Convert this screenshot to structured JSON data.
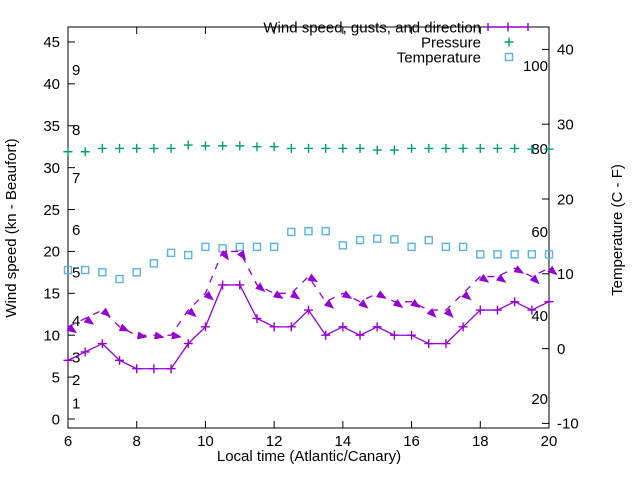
{
  "colors": {
    "wind": "#9400d3",
    "pressure": "#009e73",
    "temperature": "#56b4e9",
    "text": "#000000",
    "border": "#000000"
  },
  "legend": {
    "items": [
      {
        "label": "Wind speed, gusts, and direction"
      },
      {
        "label": "Pressure"
      },
      {
        "label": "Temperature"
      }
    ]
  },
  "axes": {
    "x": {
      "title": "Local time (Atlantic/Canary)",
      "range": [
        6,
        20
      ],
      "ticks": [
        6,
        8,
        10,
        12,
        14,
        16,
        18,
        20
      ]
    },
    "left": {
      "title": "Wind speed (kn - Beaufort)",
      "ticks": [
        0,
        5,
        10,
        15,
        20,
        25,
        30,
        35,
        40,
        45
      ]
    },
    "right": {
      "title": "Temperature (C - F)",
      "ticks": [
        -10,
        0,
        10,
        20,
        30,
        40
      ]
    },
    "beaufort_labels": [
      {
        "text": "1",
        "kn": 1.9
      },
      {
        "text": "2",
        "kn": 4.7
      },
      {
        "text": "3",
        "kn": 7.4
      },
      {
        "text": "4",
        "kn": 11.7
      },
      {
        "text": "5",
        "kn": 17.5
      },
      {
        "text": "6",
        "kn": 22.6
      },
      {
        "text": "7",
        "kn": 28.8
      },
      {
        "text": "8",
        "kn": 34.5
      },
      {
        "text": "9",
        "kn": 41.7
      }
    ],
    "fahrenheit_labels": [
      {
        "text": "20",
        "c": -6.7
      },
      {
        "text": "40",
        "c": 4.4
      },
      {
        "text": "60",
        "c": 15.6
      },
      {
        "text": "80",
        "c": 26.7
      },
      {
        "text": "100",
        "c": 37.8
      }
    ]
  },
  "chart_data": {
    "type": "line",
    "x_hours": [
      6,
      6.5,
      7,
      7.5,
      8,
      8.5,
      9,
      9.5,
      10,
      10.5,
      11,
      11.5,
      12,
      12.5,
      13,
      13.5,
      14,
      14.5,
      15,
      15.5,
      16,
      16.5,
      17,
      17.5,
      18,
      18.5,
      19,
      19.5,
      20
    ],
    "series": [
      {
        "name": "Wind speed (kn)",
        "axis": "left",
        "style": "solid-line-plus-markers",
        "values": [
          7,
          8,
          9,
          7,
          6,
          6,
          6,
          9,
          11,
          16,
          16,
          12,
          11,
          11,
          13,
          10,
          11,
          10,
          11,
          10,
          10,
          9,
          9,
          11,
          13,
          13,
          14,
          13,
          14
        ]
      },
      {
        "name": "Gusts and direction (kn)",
        "axis": "left",
        "style": "dashed-line-direction-arrows",
        "values": [
          11,
          12,
          13,
          11,
          10,
          10,
          10,
          13,
          15,
          20,
          20,
          16,
          15,
          15,
          17,
          14,
          15,
          14,
          15,
          14,
          14,
          13,
          13,
          15,
          17,
          17,
          18,
          17,
          18
        ],
        "direction_deg_cw_from_east": [
          35,
          35,
          40,
          25,
          10,
          12,
          10,
          40,
          40,
          55,
          55,
          40,
          30,
          35,
          30,
          40,
          30,
          40,
          30,
          35,
          35,
          45,
          45,
          40,
          35,
          35,
          30,
          45,
          40
        ]
      },
      {
        "name": "Pressure",
        "axis": "left",
        "style": "plus-markers",
        "values": [
          31.9,
          31.9,
          32.3,
          32.3,
          32.3,
          32.3,
          32.3,
          32.7,
          32.6,
          32.6,
          32.6,
          32.5,
          32.5,
          32.3,
          32.3,
          32.3,
          32.3,
          32.3,
          32.1,
          32.1,
          32.3,
          32.3,
          32.3,
          32.3,
          32.3,
          32.3,
          32.3,
          32.2,
          32.2
        ]
      },
      {
        "name": "Temperature (C)",
        "axis": "right",
        "style": "open-square-markers",
        "values": [
          10.5,
          10.5,
          10.2,
          9.3,
          10.2,
          11.4,
          12.8,
          12.5,
          13.6,
          13.4,
          13.6,
          13.6,
          13.6,
          15.6,
          15.7,
          15.7,
          13.8,
          14.5,
          14.7,
          14.6,
          13.6,
          14.5,
          13.6,
          13.6,
          12.6,
          12.6,
          12.6,
          12.6,
          12.6
        ]
      }
    ],
    "legend_position": "top-right",
    "grid": false
  }
}
